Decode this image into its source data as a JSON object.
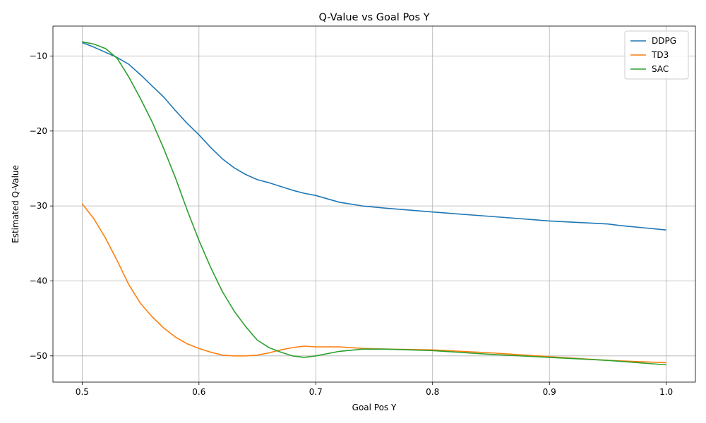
{
  "chart_data": {
    "type": "line",
    "title": "Q-Value vs Goal Pos Y",
    "xlabel": "Goal Pos Y",
    "ylabel": "Estimated Q-Value",
    "xlim": [
      0.475,
      1.025
    ],
    "ylim": [
      -53.5,
      -6.0
    ],
    "xticks": [
      0.5,
      0.6,
      0.7,
      0.8,
      0.9,
      1.0
    ],
    "xtick_labels": [
      "0.5",
      "0.6",
      "0.7",
      "0.8",
      "0.9",
      "1.0"
    ],
    "yticks": [
      -10,
      -20,
      -30,
      -40,
      -50
    ],
    "ytick_labels": [
      "−10",
      "−20",
      "−30",
      "−40",
      "−50"
    ],
    "grid": true,
    "legend_position": "top-right",
    "series": [
      {
        "name": "DDPG",
        "color": "#1f77b4",
        "x": [
          0.5,
          0.51,
          0.52,
          0.53,
          0.54,
          0.55,
          0.56,
          0.57,
          0.58,
          0.59,
          0.6,
          0.61,
          0.62,
          0.63,
          0.64,
          0.65,
          0.66,
          0.67,
          0.68,
          0.69,
          0.7,
          0.72,
          0.74,
          0.76,
          0.8,
          0.85,
          0.9,
          0.95,
          0.96,
          0.98,
          1.0
        ],
        "y": [
          -8.2,
          -8.8,
          -9.5,
          -10.2,
          -11.1,
          -12.5,
          -14.0,
          -15.5,
          -17.3,
          -19.0,
          -20.5,
          -22.2,
          -23.7,
          -24.9,
          -25.8,
          -26.5,
          -26.9,
          -27.4,
          -27.9,
          -28.3,
          -28.6,
          -29.5,
          -30.0,
          -30.3,
          -30.8,
          -31.4,
          -32.0,
          -32.4,
          -32.6,
          -32.9,
          -33.2
        ]
      },
      {
        "name": "TD3",
        "color": "#ff7f0e",
        "x": [
          0.5,
          0.51,
          0.52,
          0.53,
          0.54,
          0.55,
          0.56,
          0.57,
          0.58,
          0.59,
          0.6,
          0.61,
          0.62,
          0.63,
          0.64,
          0.65,
          0.66,
          0.67,
          0.68,
          0.69,
          0.7,
          0.72,
          0.74,
          0.76,
          0.8,
          0.85,
          0.9,
          0.95,
          1.0
        ],
        "y": [
          -29.7,
          -31.7,
          -34.3,
          -37.3,
          -40.5,
          -43.0,
          -44.8,
          -46.3,
          -47.5,
          -48.4,
          -49.0,
          -49.5,
          -49.9,
          -50.0,
          -50.0,
          -49.9,
          -49.6,
          -49.2,
          -48.9,
          -48.7,
          -48.8,
          -48.8,
          -49.0,
          -49.1,
          -49.2,
          -49.6,
          -50.1,
          -50.6,
          -50.9
        ]
      },
      {
        "name": "SAC",
        "color": "#2ca02c",
        "x": [
          0.5,
          0.51,
          0.52,
          0.53,
          0.54,
          0.55,
          0.56,
          0.57,
          0.58,
          0.59,
          0.6,
          0.61,
          0.62,
          0.63,
          0.64,
          0.65,
          0.66,
          0.67,
          0.68,
          0.69,
          0.7,
          0.72,
          0.74,
          0.76,
          0.8,
          0.85,
          0.9,
          0.95,
          1.0
        ],
        "y": [
          -8.1,
          -8.4,
          -9.0,
          -10.3,
          -12.8,
          -15.7,
          -18.8,
          -22.4,
          -26.3,
          -30.6,
          -34.6,
          -38.2,
          -41.4,
          -44.0,
          -46.1,
          -47.9,
          -48.9,
          -49.5,
          -50.0,
          -50.2,
          -50.0,
          -49.4,
          -49.1,
          -49.1,
          -49.3,
          -49.8,
          -50.2,
          -50.6,
          -51.2
        ]
      }
    ]
  }
}
